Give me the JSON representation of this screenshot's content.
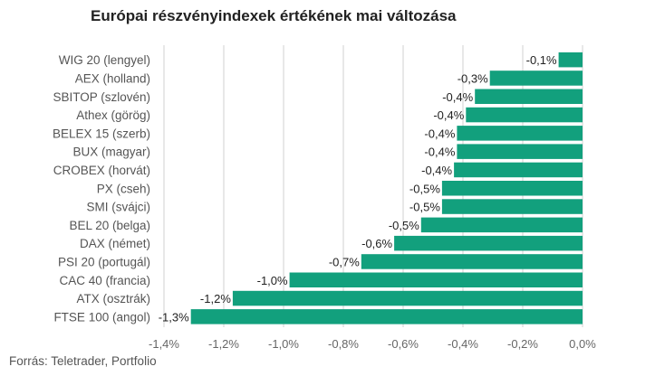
{
  "title": "Európai részvényindexek értékének mai változása",
  "source": "Forrás: Teletrader, Portfolio",
  "colors": {
    "bar": "#12a07d",
    "grid": "#d0d0d0"
  },
  "chart_data": {
    "type": "bar",
    "orientation": "horizontal",
    "title": "Európai részvényindexek értékének mai változása",
    "categories": [
      "WIG 20 (lengyel)",
      "AEX (holland)",
      "SBITOP (szlovén)",
      "Athex (görög)",
      "BELEX 15 (szerb)",
      "BUX (magyar)",
      "CROBEX (horvát)",
      "PX (cseh)",
      "SMI (svájci)",
      "BEL 20 (belga)",
      "DAX (német)",
      "PSI 20 (portugál)",
      "CAC 40 (francia)",
      "ATX (osztrák)",
      "FTSE 100 (angol)"
    ],
    "values": [
      -0.08,
      -0.31,
      -0.36,
      -0.39,
      -0.42,
      -0.42,
      -0.43,
      -0.47,
      -0.47,
      -0.54,
      -0.63,
      -0.74,
      -0.98,
      -1.17,
      -1.31
    ],
    "data_labels": [
      "-0,1%",
      "-0,3%",
      "-0,4%",
      "-0,4%",
      "-0,4%",
      "-0,4%",
      "-0,4%",
      "-0,5%",
      "-0,5%",
      "-0,5%",
      "-0,6%",
      "-0,7%",
      "-1,0%",
      "-1,2%",
      "-1,3%"
    ],
    "xlim": [
      -1.4,
      0.0
    ],
    "xticks": [
      -1.4,
      -1.2,
      -1.0,
      -0.8,
      -0.6,
      -0.4,
      -0.2,
      0.0
    ],
    "xtick_labels": [
      "-1,4%",
      "-1,2%",
      "-1,0%",
      "-0,8%",
      "-0,6%",
      "-0,4%",
      "-0,2%",
      "0,0%"
    ],
    "grid": true,
    "legend": false
  }
}
